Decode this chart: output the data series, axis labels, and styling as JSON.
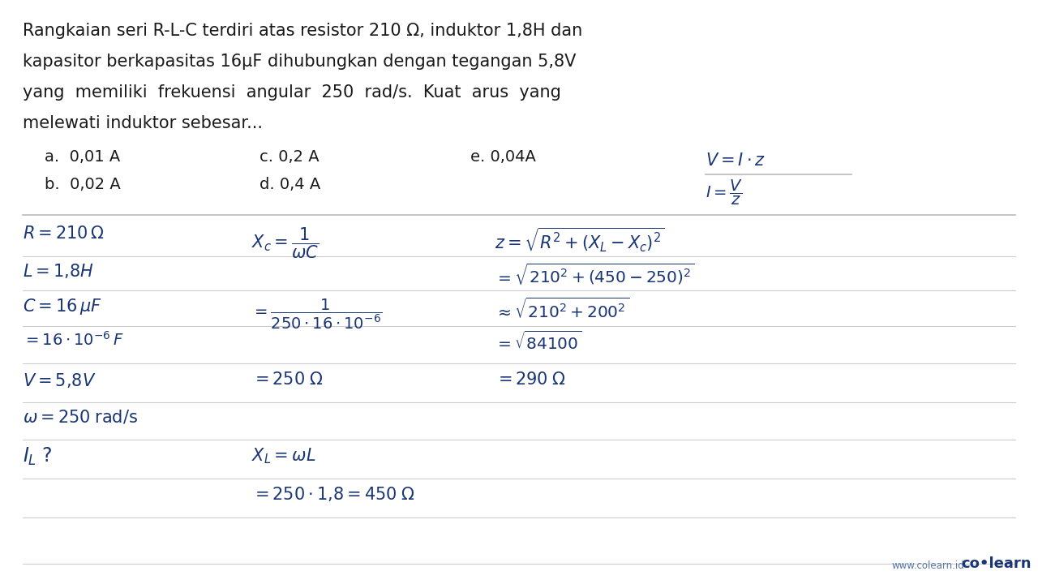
{
  "bg_color": "#ffffff",
  "text_color": "#1a1a1a",
  "hw_color": "#1a3575",
  "title_lines": [
    "Rangkaian seri R-L-C terdiri atas resistor 210 Ω, induktor 1,8H dan",
    "kapasitor berkapasitas 16μF dihubungkan dengan tegangan 5,8V",
    "yang  memiliki  frekuensi  angular  250  rad/s.  Kuat  arus  yang",
    "melewati induktor sebesar..."
  ],
  "opt_a": "a.  0,01 A",
  "opt_b": "b.  0,02 A",
  "opt_c": "c. 0,2 A",
  "opt_d": "d. 0,4 A",
  "opt_e": "e. 0,04A",
  "logo_url": "www.colearn.id",
  "logo_brand": "co•learn",
  "sep_color": "#bbbbbb",
  "sep_color2": "#cccccc"
}
